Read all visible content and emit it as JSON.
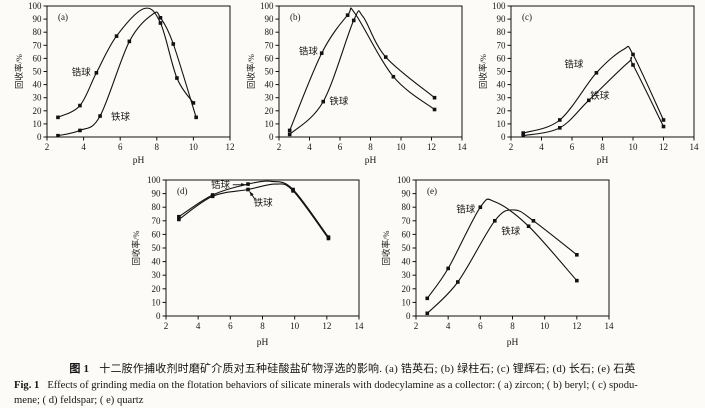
{
  "page": {
    "background": "#fcfbf8",
    "ink": "#111111"
  },
  "caption": {
    "zh_prefix": "图 1",
    "zh_body": "十二胺作捕收剂时磨矿介质对五种硅酸盐矿物浮选的影响. (a) 锆英石; (b) 绿柱石; (c) 锂辉石; (d) 长石; (e) 石英",
    "en_prefix": "Fig. 1",
    "en_body": "Effects of grinding media on the flotation behaviors of silicate minerals with dodecylamine as a collector: ( a)  zircon; ( b)  beryl; ( c)  spodu-",
    "en_line2": "mene; ( d)  feldspar; ( e)  quartz"
  },
  "chart_data": [
    {
      "type": "line",
      "panel": "a",
      "letter": "(a)",
      "mineral_zh": "锆英石",
      "mineral_en": "zircon",
      "xlabel": "pH",
      "ylabel": "回收率/%",
      "xlim": [
        2,
        12
      ],
      "xticks": [
        2,
        4,
        6,
        8,
        10,
        12
      ],
      "ylim": [
        0,
        100
      ],
      "ytick_step": 10,
      "grid": false,
      "series": [
        {
          "key": "zirconia-ball",
          "name": "锆球",
          "points": [
            [
              2.6,
              15
            ],
            [
              3.8,
              24
            ],
            [
              4.7,
              49
            ],
            [
              5.8,
              77
            ],
            [
              8.2,
              87
            ],
            [
              9.1,
              45
            ],
            [
              10.0,
              26
            ]
          ],
          "peak": [
            7.3,
            98
          ],
          "label": {
            "x": 3.35,
            "y": 47,
            "arrow_from": null,
            "arrow_to": null
          }
        },
        {
          "key": "iron-ball",
          "name": "铁球",
          "points": [
            [
              2.6,
              1
            ],
            [
              3.8,
              5
            ],
            [
              4.9,
              16
            ],
            [
              6.5,
              73
            ],
            [
              8.2,
              91
            ],
            [
              8.9,
              71
            ],
            [
              10.15,
              15
            ]
          ],
          "peak": [
            7.8,
            94
          ],
          "label": {
            "x": 5.5,
            "y": 13,
            "arrow_from": null,
            "arrow_to": null
          }
        }
      ]
    },
    {
      "type": "line",
      "panel": "b",
      "letter": "(b)",
      "mineral_zh": "绿柱石",
      "mineral_en": "beryl",
      "xlabel": "pH",
      "ylabel": "回收率/%",
      "xlim": [
        2,
        14
      ],
      "xticks": [
        2,
        4,
        6,
        8,
        10,
        12,
        14
      ],
      "ylim": [
        0,
        100
      ],
      "ytick_step": 10,
      "grid": false,
      "series": [
        {
          "key": "zirconia-ball",
          "name": "锆球",
          "points": [
            [
              2.7,
              5
            ],
            [
              4.8,
              64
            ],
            [
              6.5,
              93
            ],
            [
              9.5,
              46
            ],
            [
              12.2,
              21
            ]
          ],
          "peak": [
            7.0,
            94
          ],
          "label": {
            "x": 3.3,
            "y": 63,
            "arrow_from": null,
            "arrow_to": null
          }
        },
        {
          "key": "iron-ball",
          "name": "铁球",
          "points": [
            [
              2.7,
              2
            ],
            [
              4.9,
              27
            ],
            [
              6.9,
              89
            ],
            [
              9.0,
              61
            ],
            [
              12.2,
              30
            ]
          ],
          "peak": [
            7.5,
            92
          ],
          "label": {
            "x": 5.3,
            "y": 25,
            "arrow_from": null,
            "arrow_to": null
          }
        }
      ]
    },
    {
      "type": "line",
      "panel": "c",
      "letter": "(c)",
      "mineral_zh": "锂辉石",
      "mineral_en": "spodumene",
      "xlabel": "pH",
      "ylabel": "回收率/%",
      "xlim": [
        2,
        14
      ],
      "xticks": [
        2,
        4,
        6,
        8,
        10,
        12,
        14
      ],
      "ylim": [
        0,
        100
      ],
      "ytick_step": 10,
      "grid": false,
      "series": [
        {
          "key": "zirconia-ball",
          "name": "锆球",
          "points": [
            [
              2.8,
              3
            ],
            [
              5.2,
              13
            ],
            [
              7.6,
              49
            ],
            [
              10.0,
              63
            ],
            [
              12.0,
              13
            ]
          ],
          "peak": [
            9.4,
            67
          ],
          "label": {
            "x": 5.5,
            "y": 53,
            "arrow_from": null,
            "arrow_to": null
          }
        },
        {
          "key": "iron-ball",
          "name": "铁球",
          "points": [
            [
              2.8,
              1
            ],
            [
              5.2,
              7
            ],
            [
              7.1,
              28
            ],
            [
              10.0,
              55
            ],
            [
              12.0,
              8
            ]
          ],
          "peak": [
            9.7,
            57
          ],
          "label": {
            "x": 7.2,
            "y": 29,
            "arrow_from": null,
            "arrow_to": null
          }
        }
      ]
    },
    {
      "type": "line",
      "panel": "d",
      "letter": "(d)",
      "mineral_zh": "长石",
      "mineral_en": "feldspar",
      "xlabel": "pH",
      "ylabel": "回收率/%",
      "xlim": [
        2,
        14
      ],
      "xticks": [
        2,
        4,
        6,
        8,
        10,
        12,
        14
      ],
      "ylim": [
        0,
        100
      ],
      "ytick_step": 10,
      "grid": false,
      "series": [
        {
          "key": "zirconia-ball",
          "name": "锆球",
          "points": [
            [
              2.8,
              73
            ],
            [
              4.9,
              89
            ],
            [
              7.1,
              97
            ],
            [
              9.9,
              93
            ],
            [
              12.1,
              58
            ]
          ],
          "peak": [
            8.6,
            99
          ],
          "label": {
            "x": 4.8,
            "y": 94,
            "arrow_from": [
              6.15,
              96.5
            ],
            "arrow_to": [
              6.95,
              96.5
            ]
          }
        },
        {
          "key": "iron-ball",
          "name": "铁球",
          "points": [
            [
              2.8,
              71
            ],
            [
              4.9,
              88
            ],
            [
              7.1,
              93
            ],
            [
              9.9,
              92
            ],
            [
              12.1,
              57
            ]
          ],
          "peak": [
            8.8,
            97
          ],
          "label": {
            "x": 7.45,
            "y": 81,
            "arrow_from": [
              7.55,
              85.5
            ],
            "arrow_to": [
              7.2,
              91.5
            ]
          }
        }
      ]
    },
    {
      "type": "line",
      "panel": "e",
      "letter": "(e)",
      "mineral_zh": "石英",
      "mineral_en": "quartz",
      "xlabel": "pH",
      "ylabel": "回收率/%",
      "xlim": [
        2,
        14
      ],
      "xticks": [
        2,
        4,
        6,
        8,
        10,
        12,
        14
      ],
      "ylim": [
        0,
        100
      ],
      "ytick_step": 10,
      "grid": false,
      "series": [
        {
          "key": "zirconia-ball",
          "name": "锆球",
          "points": [
            [
              2.7,
              13
            ],
            [
              4.0,
              35
            ],
            [
              6.0,
              80
            ],
            [
              9.0,
              66
            ],
            [
              12.0,
              26
            ]
          ],
          "peak": [
            6.9,
            84
          ],
          "label": {
            "x": 4.5,
            "y": 76,
            "arrow_from": null,
            "arrow_to": null
          }
        },
        {
          "key": "iron-ball",
          "name": "铁球",
          "points": [
            [
              2.7,
              2
            ],
            [
              4.6,
              25
            ],
            [
              6.9,
              70
            ],
            [
              9.3,
              70
            ],
            [
              12.0,
              45
            ]
          ],
          "peak": [
            8.1,
            78
          ],
          "label": {
            "x": 7.3,
            "y": 60,
            "arrow_from": null,
            "arrow_to": null
          }
        }
      ]
    }
  ]
}
